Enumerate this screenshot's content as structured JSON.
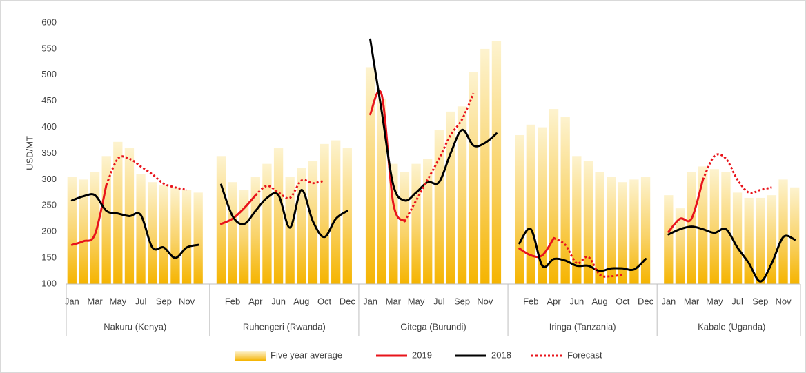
{
  "chart_data": {
    "type": "bar-line",
    "y_label": "USD/MT",
    "groups": [
      "Nakuru (Kenya)",
      "Ruhengeri (Rwanda)",
      "Gitega (Burundi)",
      "Iringa (Tanzania)",
      "Kabale (Uganda)"
    ],
    "categories": [
      "Jan",
      null,
      "Mar",
      null,
      "May",
      null,
      "Jul",
      null,
      "Sep",
      null,
      "Nov",
      null,
      null,
      "Feb",
      null,
      "Apr",
      null,
      "Jun",
      null,
      "Aug",
      null,
      "Oct",
      null,
      "Dec",
      "Jan",
      null,
      "Mar",
      null,
      "May",
      null,
      "Jul",
      null,
      "Sep",
      null,
      "Nov",
      null,
      null,
      "Feb",
      null,
      "Apr",
      null,
      "Jun",
      null,
      "Aug",
      null,
      "Oct",
      null,
      "Dec",
      "Jan",
      null,
      "Mar",
      null,
      "May",
      null,
      "Jul",
      null,
      "Sep",
      null,
      "Nov",
      null
    ],
    "ylim": [
      100,
      600
    ],
    "yticks": [
      100,
      150,
      200,
      250,
      300,
      350,
      400,
      450,
      500,
      550,
      600
    ],
    "grid": false,
    "legend": "bottom",
    "series": [
      {
        "name": "Five year average",
        "type": "bar",
        "color": "#f5b800",
        "values": [
          305,
          300,
          315,
          345,
          372,
          360,
          310,
          295,
          290,
          285,
          280,
          275,
          345,
          295,
          280,
          305,
          330,
          360,
          305,
          322,
          335,
          368,
          375,
          360,
          515,
          455,
          330,
          315,
          330,
          340,
          395,
          430,
          440,
          505,
          550,
          565,
          385,
          405,
          400,
          435,
          420,
          345,
          335,
          315,
          305,
          295,
          300,
          305,
          270,
          245,
          315,
          325,
          320,
          315,
          275,
          265,
          265,
          270,
          300,
          285
        ]
      },
      {
        "name": "2019",
        "type": "line",
        "color": "#e8141b",
        "dash": false,
        "values": [
          175,
          182,
          195,
          290,
          null,
          null,
          null,
          null,
          null,
          null,
          null,
          null,
          215,
          225,
          245,
          270,
          null,
          null,
          null,
          null,
          null,
          null,
          null,
          null,
          425,
          462,
          255,
          220,
          null,
          null,
          null,
          null,
          null,
          null,
          null,
          null,
          168,
          155,
          155,
          188,
          null,
          null,
          null,
          null,
          null,
          null,
          null,
          null,
          200,
          225,
          225,
          300,
          null,
          null,
          null,
          null,
          null,
          null,
          null,
          null
        ]
      },
      {
        "name": "2018",
        "type": "line",
        "color": "#000000",
        "dash": false,
        "values": [
          260,
          268,
          270,
          240,
          235,
          230,
          232,
          170,
          170,
          150,
          170,
          175,
          290,
          230,
          215,
          240,
          265,
          270,
          208,
          280,
          220,
          190,
          225,
          240,
          568,
          430,
          290,
          260,
          275,
          295,
          295,
          350,
          395,
          365,
          370,
          388,
          178,
          205,
          135,
          148,
          145,
          135,
          135,
          125,
          130,
          130,
          128,
          148,
          195,
          205,
          210,
          205,
          198,
          205,
          170,
          140,
          105,
          140,
          190,
          185
        ]
      },
      {
        "name": "Forecast",
        "type": "line",
        "color": "#e8141b",
        "dash": true,
        "values": [
          null,
          null,
          null,
          290,
          340,
          340,
          325,
          310,
          292,
          285,
          280,
          null,
          null,
          null,
          null,
          270,
          288,
          275,
          265,
          298,
          293,
          298,
          null,
          null,
          null,
          null,
          null,
          220,
          260,
          300,
          340,
          385,
          415,
          465,
          null,
          null,
          null,
          null,
          null,
          188,
          175,
          140,
          152,
          118,
          115,
          118,
          null,
          null,
          null,
          null,
          null,
          300,
          345,
          340,
          300,
          275,
          280,
          285,
          null,
          null
        ]
      }
    ]
  }
}
